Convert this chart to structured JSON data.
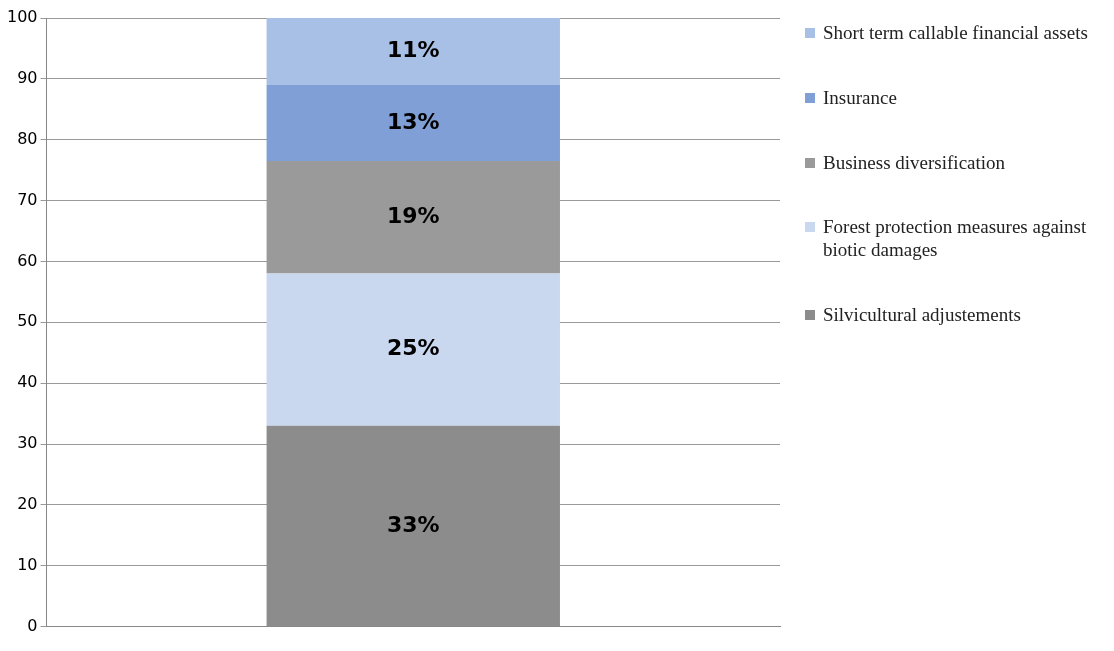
{
  "chart_data": {
    "type": "bar",
    "stacked": true,
    "categories": [
      null
    ],
    "ylim": [
      0,
      100
    ],
    "yticks": [
      0,
      10,
      20,
      30,
      40,
      50,
      60,
      70,
      80,
      90,
      100
    ],
    "grid": "y",
    "legend": "right",
    "series": [
      {
        "name": "Silvicultural adjustements",
        "color": "#8c8c8c",
        "values": [
          33
        ],
        "value_labels": [
          "33%"
        ]
      },
      {
        "name": "Forest protection measures against biotic damages",
        "color": "#c9d7ef",
        "values": [
          25
        ],
        "value_labels": [
          "25%"
        ]
      },
      {
        "name": "Business diversification",
        "color": "#9a9a9a",
        "values": [
          18.5
        ],
        "value_labels": [
          "19%"
        ]
      },
      {
        "name": "Insurance",
        "color": "#7f9fd6",
        "values": [
          12.5
        ],
        "value_labels": [
          "13%"
        ]
      },
      {
        "name": "Short term callable financial assets",
        "color": "#a9c0e6",
        "values": [
          11
        ],
        "value_labels": [
          "11%"
        ]
      }
    ]
  }
}
